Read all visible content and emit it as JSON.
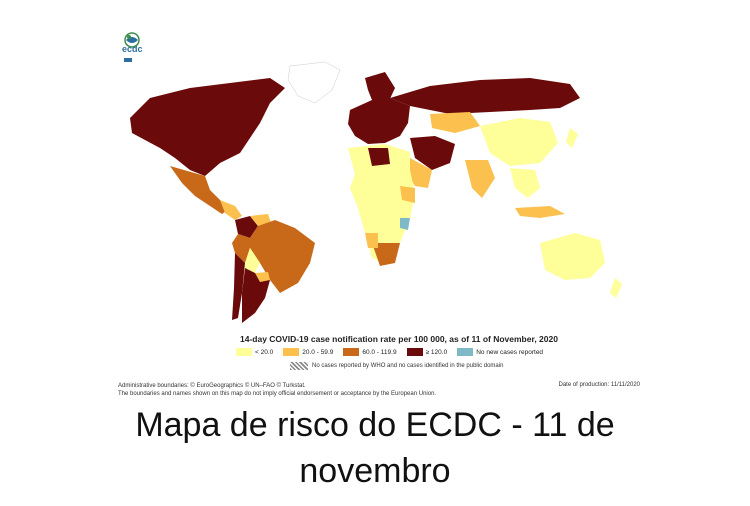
{
  "logo": {
    "text": "ecdc",
    "icon": "ecdc-globe-logo"
  },
  "map": {
    "legend_title": "14-day COVID-19 case notification rate per 100 000, as of 11 of November, 2020",
    "legend": [
      {
        "label": "< 20.0",
        "color": "#ffff99"
      },
      {
        "label": "20.0 - 59.9",
        "color": "#fbc04d"
      },
      {
        "label": "60.0 - 119.9",
        "color": "#c8691a"
      },
      {
        "label": "≥ 120.0",
        "color": "#6b0a0a"
      },
      {
        "label": "No new cases reported",
        "color": "#7fb9c8"
      }
    ],
    "no_data_label": "No cases reported by WHO and no cases identified in the public domain",
    "admin_line1": "Administrative boundaries: © EuroGeographics © UN–FAO © Turkstat.",
    "admin_line2": "The boundaries and names shown on this map do not imply official endorsement or acceptance by the European Union.",
    "production_date": "Date of production: 11/11/2020"
  },
  "caption": {
    "line1": "Mapa de risco do ECDC - 11 de",
    "line2": "novembro"
  }
}
